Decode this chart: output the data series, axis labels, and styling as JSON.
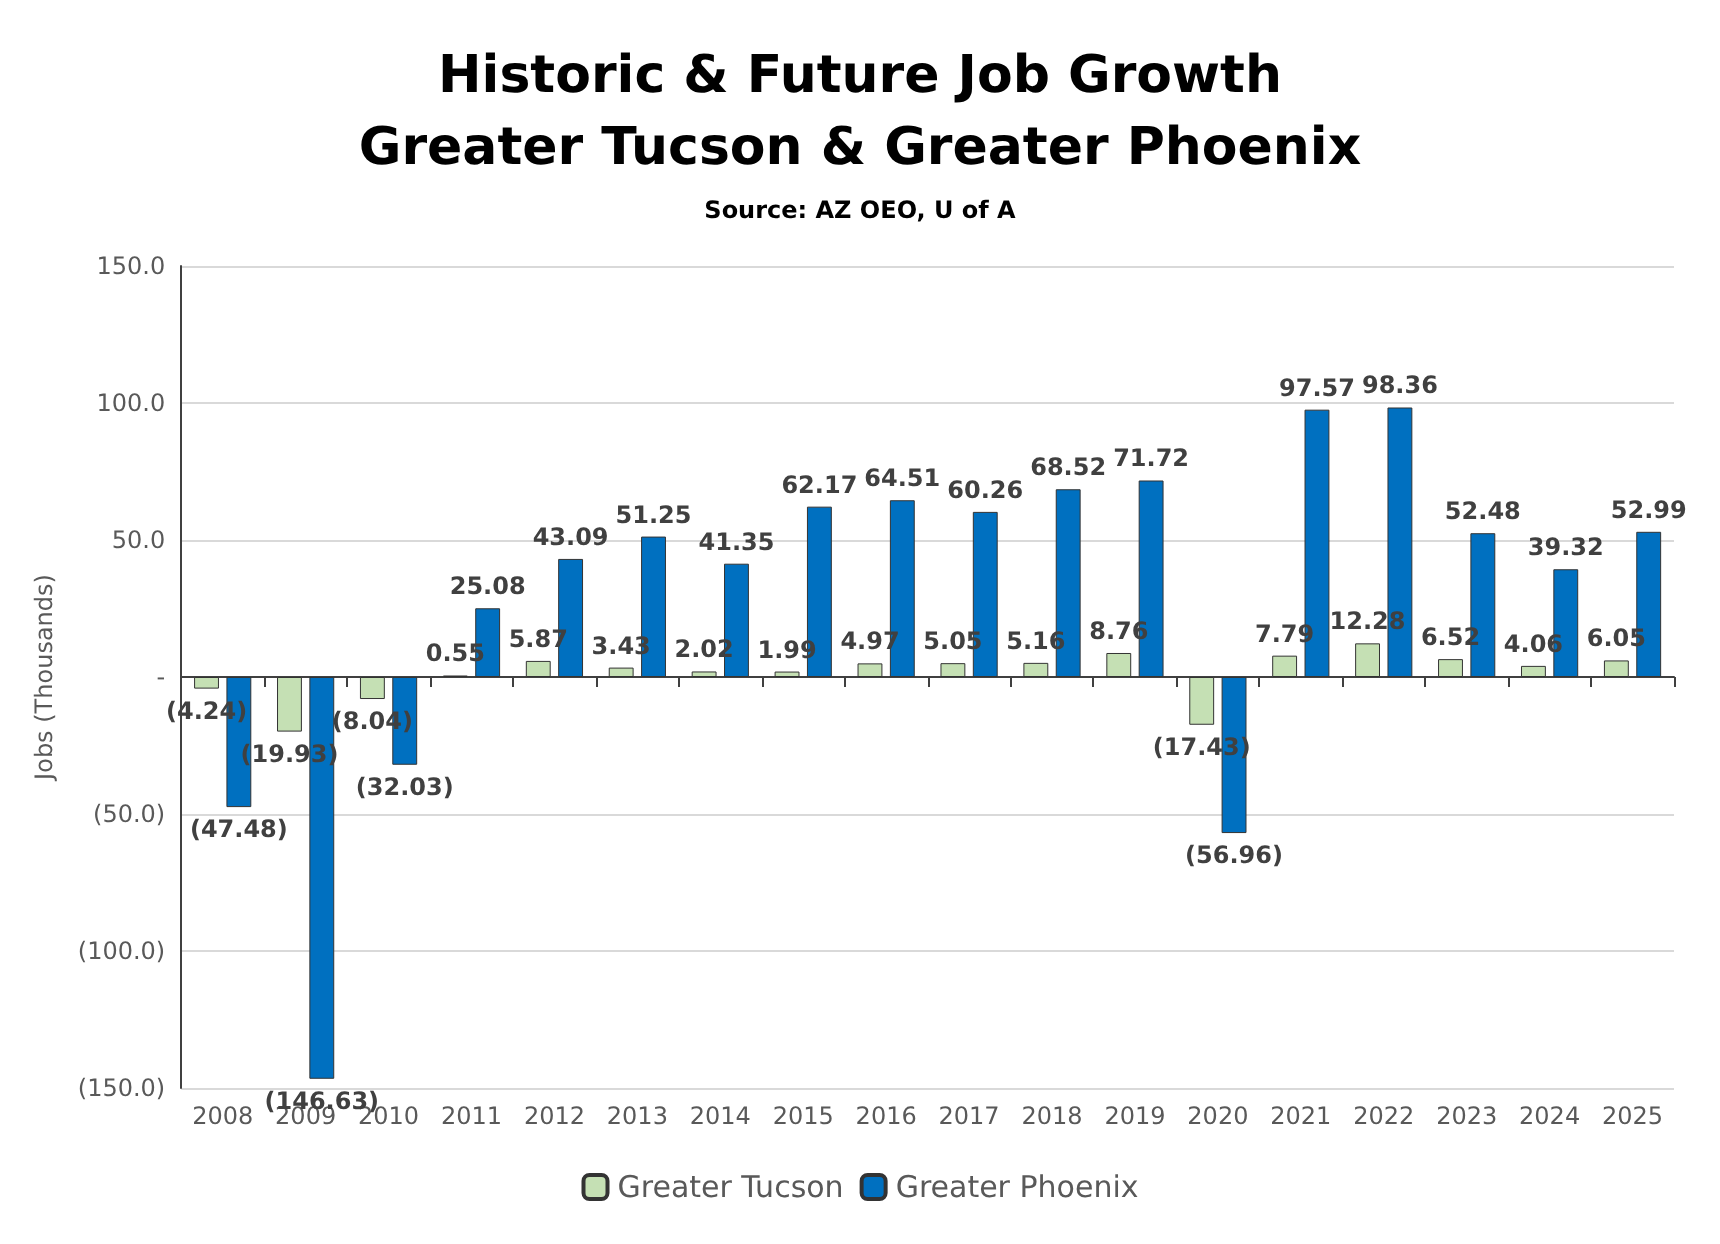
{
  "chart_data": {
    "type": "bar",
    "title": "Historic & Future Job Growth",
    "subtitle": "Greater Tucson & Greater Phoenix",
    "annotations": [
      "Source: AZ OEO, U of A"
    ],
    "ylabel": "Jobs (Thousands)",
    "categories": [
      "2008",
      "2009",
      "2010",
      "2011",
      "2012",
      "2013",
      "2014",
      "2015",
      "2016",
      "2017",
      "2018",
      "2019",
      "2020",
      "2021",
      "2022",
      "2023",
      "2024",
      "2025"
    ],
    "series": [
      {
        "name": "Greater Tucson",
        "color": "#c5e0b4",
        "values": [
          -4.24,
          -19.93,
          -8.04,
          0.55,
          5.87,
          3.43,
          2.02,
          1.99,
          4.97,
          5.05,
          5.16,
          8.76,
          -17.43,
          7.79,
          12.28,
          6.52,
          4.06,
          6.05
        ],
        "value_labels": [
          "(4.24)",
          "(19.93)",
          "(8.04)",
          "0.55",
          "5.87",
          "3.43",
          "2.02",
          "1.99",
          "4.97",
          "5.05",
          "5.16",
          "8.76",
          "(17.43)",
          "7.79",
          "12.28",
          "6.52",
          "4.06",
          "6.05"
        ]
      },
      {
        "name": "Greater Phoenix",
        "color": "#0070c0",
        "values": [
          -47.48,
          -146.63,
          -32.03,
          25.08,
          43.09,
          51.25,
          41.35,
          62.17,
          64.51,
          60.26,
          68.52,
          71.72,
          -56.96,
          97.57,
          98.36,
          52.48,
          39.32,
          52.99
        ],
        "value_labels": [
          "(47.48)",
          "(146.63)",
          "(32.03)",
          "25.08",
          "43.09",
          "51.25",
          "41.35",
          "62.17",
          "64.51",
          "60.26",
          "68.52",
          "71.72",
          "(56.96)",
          "97.57",
          "98.36",
          "52.48",
          "39.32",
          "52.99"
        ]
      }
    ],
    "ylim": [
      -150,
      150
    ],
    "yticks": [
      {
        "value": -150,
        "label": "(150.0)"
      },
      {
        "value": -100,
        "label": "(100.0)"
      },
      {
        "value": -50,
        "label": "(50.0)"
      },
      {
        "value": 0,
        "label": "-"
      },
      {
        "value": 50,
        "label": "50.0"
      },
      {
        "value": 100,
        "label": "100.0"
      },
      {
        "value": 150,
        "label": "150.0"
      }
    ],
    "grid": "y",
    "legend": "bottom"
  }
}
